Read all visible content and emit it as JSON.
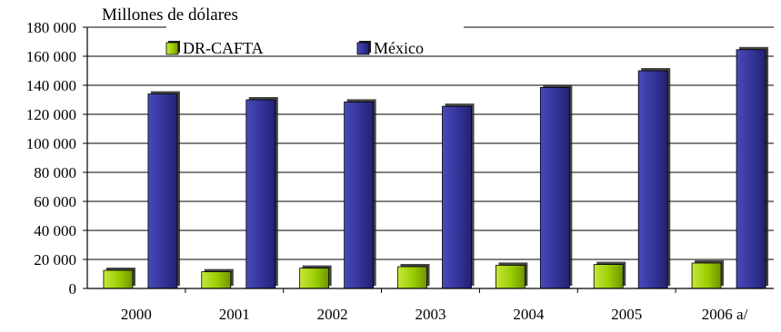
{
  "chart_data": {
    "type": "bar",
    "title": "",
    "unit_label": "Millones de dólares",
    "xlabel": "",
    "ylabel": "",
    "categories": [
      "2000",
      "2001",
      "2002",
      "2003",
      "2004",
      "2005",
      "2006 a/"
    ],
    "series": [
      {
        "name": "DR-CAFTA",
        "color": "#99cc00",
        "values": [
          12500,
          11500,
          14000,
          15000,
          16000,
          16500,
          17500
        ]
      },
      {
        "name": "México",
        "color": "#333399",
        "values": [
          134000,
          130000,
          128500,
          125500,
          138500,
          150000,
          164500
        ]
      }
    ],
    "ylim": [
      0,
      180000
    ],
    "yticks": [
      0,
      20000,
      40000,
      60000,
      80000,
      100000,
      120000,
      140000,
      160000,
      180000
    ],
    "ytick_labels": [
      "0",
      "20 000",
      "40 000",
      "60 000",
      "80 000",
      "100 000",
      "120 000",
      "140 000",
      "160 000",
      "180 000"
    ],
    "grid": true,
    "legend_position": "top"
  }
}
